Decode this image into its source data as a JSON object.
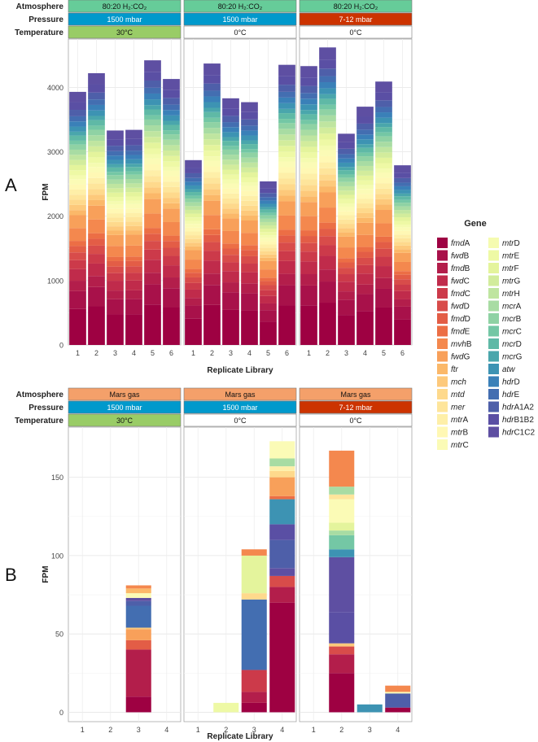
{
  "panels": [
    {
      "letter": "A",
      "strip_labels": {
        "atmosphere": "Atmosphere",
        "pressure": "Pressure",
        "temperature": "Temperature"
      },
      "facets": [
        {
          "atmosphere": "80:20 H₂:CO₂",
          "pressure": "1500 mbar",
          "temperature": "30°C",
          "pressure_color": "#0099cc",
          "temperature_color": "#99cc66"
        },
        {
          "atmosphere": "80:20 H₂:CO₂",
          "pressure": "1500 mbar",
          "temperature": "0°C",
          "pressure_color": "#0099cc",
          "temperature_color": "#ffffff"
        },
        {
          "atmosphere": "80:20 H₂:CO₂",
          "pressure": "7-12 mbar",
          "temperature": "0°C",
          "pressure_color": "#cc3300",
          "temperature_color": "#ffffff"
        }
      ],
      "atmosphere_color": "#66cc99"
    },
    {
      "letter": "B",
      "strip_labels": {
        "atmosphere": "Atmosphere",
        "pressure": "Pressure",
        "temperature": "Temperature"
      },
      "facets": [
        {
          "atmosphere": "Mars gas",
          "pressure": "1500 mbar",
          "temperature": "30°C",
          "pressure_color": "#0099cc",
          "temperature_color": "#99cc66"
        },
        {
          "atmosphere": "Mars gas",
          "pressure": "1500 mbar",
          "temperature": "0°C",
          "pressure_color": "#0099cc",
          "temperature_color": "#ffffff"
        },
        {
          "atmosphere": "Mars gas",
          "pressure": "7-12 mbar",
          "temperature": "0°C",
          "pressure_color": "#cc3300",
          "temperature_color": "#ffffff"
        }
      ],
      "atmosphere_color": "#f4a06a"
    }
  ],
  "legend": {
    "title": "Gene",
    "genes": [
      "fmdA",
      "fwdB",
      "fmdB",
      "fwdC",
      "fmdC",
      "fwdD",
      "fmdD",
      "fmdE",
      "mvhB",
      "fwdG",
      "ftr",
      "mch",
      "mtd",
      "mer",
      "mtrA",
      "mtrB",
      "mtrC",
      "mtrD",
      "mtrE",
      "mtrF",
      "mtrG",
      "mtrH",
      "mcrA",
      "mcrB",
      "mcrC",
      "mcrD",
      "mcrG",
      "atw",
      "hdrD",
      "hdrE",
      "hdrA1A2",
      "hdrB1B2",
      "hdrC1C2"
    ],
    "colors": [
      "#9e0142",
      "#a8114a",
      "#b31e4b",
      "#c02b4b",
      "#cc3a4a",
      "#d84c4a",
      "#e35d46",
      "#ec6e45",
      "#f4884e",
      "#f8a05a",
      "#fbb869",
      "#fdc97b",
      "#fed98c",
      "#fee59b",
      "#feefa8",
      "#fff8b4",
      "#fbfbb6",
      "#f5fbb0",
      "#eef9a5",
      "#e4f49c",
      "#d2ec9c",
      "#bfe5a0",
      "#a8dca3",
      "#8fd2a4",
      "#74c7a5",
      "#5fb9a6",
      "#4aa6ac",
      "#3d93b3",
      "#3a80b8",
      "#436eb1",
      "#4e5fa9",
      "#5a4fa4",
      "#5e4fa2"
    ],
    "italic_prefix_length": [
      3,
      3,
      3,
      3,
      3,
      3,
      3,
      3,
      3,
      3,
      3,
      3,
      3,
      3,
      3,
      3,
      3,
      3,
      3,
      3,
      3,
      3,
      3,
      3,
      3,
      3,
      3,
      3,
      3,
      3,
      3,
      3,
      3
    ]
  },
  "chart_data": [
    {
      "type": "stacked-bar",
      "title": "A",
      "xlabel": "Replicate Library",
      "ylabel": "FPM",
      "ylim": [
        0,
        4750
      ],
      "yticks": [
        0,
        1000,
        2000,
        3000,
        4000
      ],
      "gene_proportions": [
        0.14,
        0.07,
        0.04,
        0.045,
        0.035,
        0.03,
        0.025,
        0.02,
        0.05,
        0.05,
        0.02,
        0.02,
        0.02,
        0.02,
        0.02,
        0.02,
        0.02,
        0.015,
        0.02,
        0.02,
        0.02,
        0.02,
        0.02,
        0.02,
        0.015,
        0.02,
        0.015,
        0.02,
        0.02,
        0.02,
        0.025,
        0.03,
        0.04
      ],
      "facets": [
        {
          "categories": [
            "1",
            "2",
            "3",
            "4",
            "5",
            "6"
          ],
          "totals": [
            3930,
            4220,
            3330,
            3340,
            4420,
            4130
          ]
        },
        {
          "categories": [
            "1",
            "2",
            "3",
            "4",
            "5",
            "6"
          ],
          "totals": [
            2870,
            4370,
            3830,
            3770,
            2540,
            4350
          ]
        },
        {
          "categories": [
            "1",
            "2",
            "3",
            "4",
            "5",
            "6"
          ],
          "totals": [
            4330,
            4620,
            3280,
            3700,
            4090,
            2790
          ]
        }
      ]
    },
    {
      "type": "stacked-bar",
      "title": "B",
      "xlabel": "Replicate Library",
      "ylabel": "FPM",
      "ylim": [
        -6,
        182
      ],
      "yticks": [
        0,
        50,
        100,
        150
      ],
      "facets": [
        {
          "categories": [
            "1",
            "2",
            "3",
            "4"
          ],
          "bars": [
            {
              "x": "3",
              "segments": [
                {
                  "gene": "fmdA",
                  "value": 10
                },
                {
                  "gene": "fmdB",
                  "value": 30
                },
                {
                  "gene": "fmdD",
                  "value": 6
                },
                {
                  "gene": "fwdG",
                  "value": 7
                },
                {
                  "gene": "mch",
                  "value": 1
                },
                {
                  "gene": "hdrE",
                  "value": 14
                },
                {
                  "gene": "hdrA1A2",
                  "value": 3
                },
                {
                  "gene": "hdrC1C2",
                  "value": 2
                },
                {
                  "gene": "mtrC",
                  "value": 3
                },
                {
                  "gene": "ftr",
                  "value": 3
                },
                {
                  "gene": "mvhB",
                  "value": 2
                }
              ]
            }
          ]
        },
        {
          "categories": [
            "1",
            "2",
            "3",
            "4"
          ],
          "bars": [
            {
              "x": "2",
              "segments": [
                {
                  "gene": "mtrE",
                  "value": 6
                }
              ]
            },
            {
              "x": "3",
              "segments": [
                {
                  "gene": "fmdA",
                  "value": 6
                },
                {
                  "gene": "fmdB",
                  "value": 7
                },
                {
                  "gene": "fmdC",
                  "value": 14
                },
                {
                  "gene": "hdrE",
                  "value": 45
                },
                {
                  "gene": "mtd",
                  "value": 4
                },
                {
                  "gene": "mtrF",
                  "value": 24
                },
                {
                  "gene": "mvhB",
                  "value": 4
                }
              ]
            },
            {
              "x": "4",
              "segments": [
                {
                  "gene": "fmdA",
                  "value": 70
                },
                {
                  "gene": "fmdB",
                  "value": 10
                },
                {
                  "gene": "fwdD",
                  "value": 7
                },
                {
                  "gene": "hdrC1C2",
                  "value": 5
                },
                {
                  "gene": "hdrA1A2",
                  "value": 18
                },
                {
                  "gene": "hdrB1B2",
                  "value": 10
                },
                {
                  "gene": "atw",
                  "value": 16
                },
                {
                  "gene": "fmdE",
                  "value": 2
                },
                {
                  "gene": "fwdG",
                  "value": 12
                },
                {
                  "gene": "mtd",
                  "value": 4
                },
                {
                  "gene": "mtrA",
                  "value": 3
                },
                {
                  "gene": "mcrA",
                  "value": 5
                },
                {
                  "gene": "mtrC",
                  "value": 11
                }
              ]
            }
          ]
        },
        {
          "categories": [
            "1",
            "2",
            "3",
            "4"
          ],
          "bars": [
            {
              "x": "2",
              "segments": [
                {
                  "gene": "fmdA",
                  "value": 25
                },
                {
                  "gene": "fmdB",
                  "value": 12
                },
                {
                  "gene": "fwdD",
                  "value": 5
                },
                {
                  "gene": "mch",
                  "value": 2
                },
                {
                  "gene": "hdrB1B2",
                  "value": 20
                },
                {
                  "gene": "hdrC1C2",
                  "value": 35
                },
                {
                  "gene": "atw",
                  "value": 5
                },
                {
                  "gene": "mcrC",
                  "value": 9
                },
                {
                  "gene": "mcrA",
                  "value": 3
                },
                {
                  "gene": "mtrF",
                  "value": 5
                },
                {
                  "gene": "mtrC",
                  "value": 15
                },
                {
                  "gene": "mer",
                  "value": 3
                },
                {
                  "gene": "mcrA",
                  "value": 5
                },
                {
                  "gene": "mvhB",
                  "value": 23
                }
              ]
            },
            {
              "x": "3",
              "segments": [
                {
                  "gene": "atw",
                  "value": 5
                }
              ]
            },
            {
              "x": "4",
              "segments": [
                {
                  "gene": "fmdA",
                  "value": 3
                },
                {
                  "gene": "hdrA1A2",
                  "value": 9
                },
                {
                  "gene": "mtrC",
                  "value": 1
                },
                {
                  "gene": "mvhB",
                  "value": 4
                }
              ]
            }
          ]
        }
      ]
    }
  ]
}
